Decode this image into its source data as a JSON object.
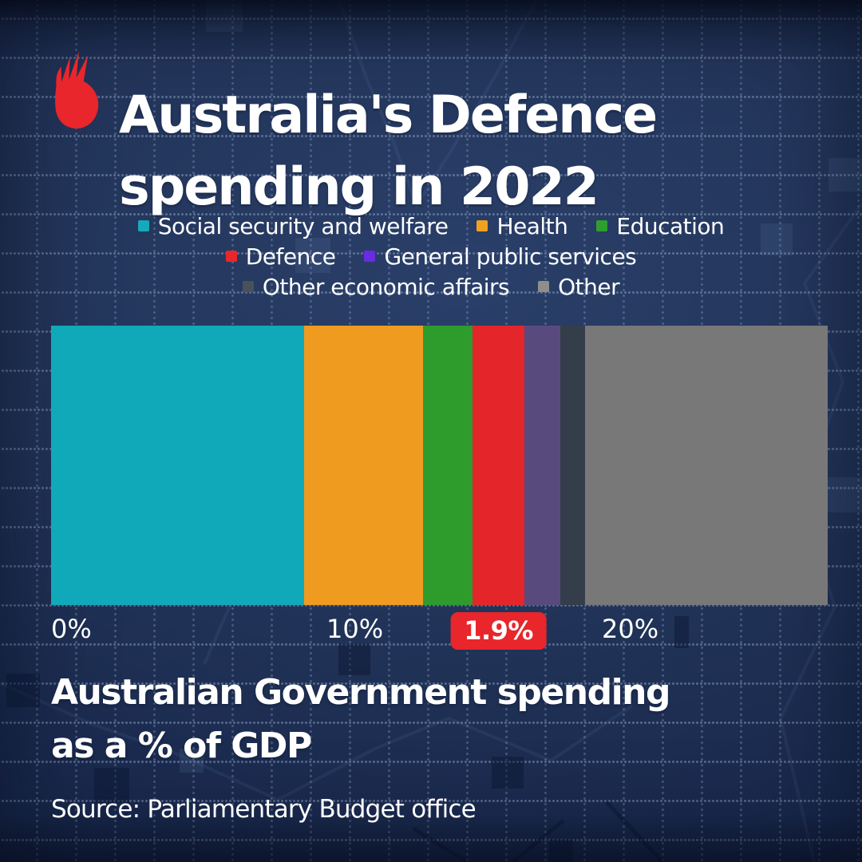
{
  "brand": {
    "icon": "sbs-mercury-logo",
    "logo_color": "#e8262b"
  },
  "title": {
    "line1": "Australia's Defence",
    "line2": "spending in 2022"
  },
  "chart_data": {
    "type": "bar",
    "subtype": "horizontal-stacked",
    "title": "Australia's Defence spending in 2022",
    "xlabel": "Australian Government spending as a % of GDP",
    "unit": "percent of GDP",
    "xlim": [
      0,
      28.2
    ],
    "grid": "dotted-background",
    "legend_position": "top-center",
    "series": [
      {
        "name": "Social security and welfare",
        "value": 9.2,
        "bar_color": "#10a9b9",
        "legend_color": "#16aab8"
      },
      {
        "name": "Health",
        "value": 4.3,
        "bar_color": "#ef9b1f",
        "legend_color": "#f0a21f"
      },
      {
        "name": "Education",
        "value": 1.8,
        "bar_color": "#2e9b2d",
        "legend_color": "#2f9e2e"
      },
      {
        "name": "Defence",
        "value": 1.9,
        "bar_color": "#e42529",
        "legend_color": "#e8262b"
      },
      {
        "name": "General public services",
        "value": 1.3,
        "bar_color": "#594a7d",
        "legend_color": "#6b2be0"
      },
      {
        "name": "Other economic affairs",
        "value": 0.9,
        "bar_color": "#343e4a",
        "legend_color": "#49525a"
      },
      {
        "name": "Other",
        "value": 8.8,
        "bar_color": "#787878",
        "legend_color": "#8f8f89"
      }
    ],
    "axis_ticks": [
      {
        "label": "0%",
        "value": 0
      },
      {
        "label": "10%",
        "value": 10
      },
      {
        "label": "20%",
        "value": 20
      }
    ],
    "annotation": {
      "label": "1.9%",
      "series_name": "Defence",
      "series_index": 3,
      "badge_color": "#e8262b",
      "text_color": "#ffffff"
    }
  },
  "legend": {
    "rows": [
      [
        0,
        1,
        2
      ],
      [
        3,
        4
      ],
      [
        5,
        6
      ]
    ]
  },
  "caption": {
    "line1": "Australian Government spending",
    "line2": "as a % of GDP"
  },
  "source": {
    "text": "Source: Parliamentary Budget office"
  }
}
